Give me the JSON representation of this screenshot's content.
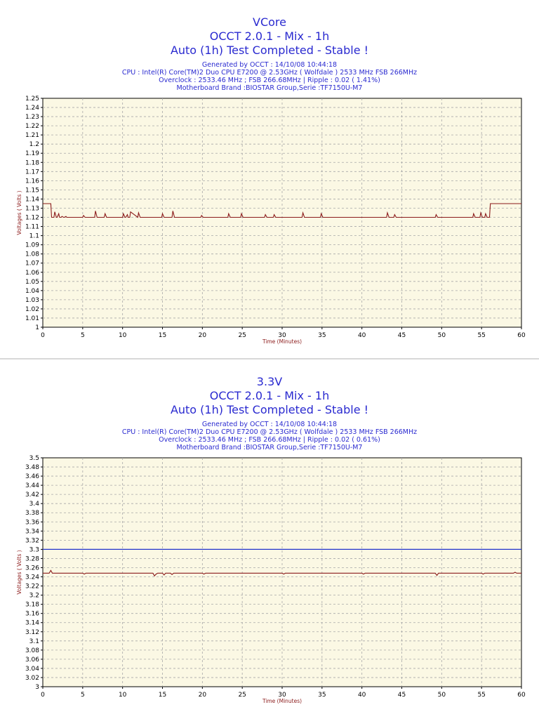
{
  "charts": [
    {
      "title": "VCore",
      "subtitle1": "OCCT 2.0.1 - Mix - 1h",
      "subtitle2": "Auto (1h) Test Completed - Stable !",
      "info": [
        "Generated by OCCT : 14/10/08 10:44:18",
        "CPU : Intel(R) Core(TM)2 Duo CPU E7200 @ 2.53GHz ( Wolfdale ) 2533 MHz FSB 266MHz",
        "Overclock : 2533.46 MHz ; FSB 266.68MHz | Ripple : 0.02 ( 1.41%)",
        "Motherboard Brand :BIOSTAR Group,Serie :TF7150U-M7"
      ]
    },
    {
      "title": "3.3V",
      "subtitle1": "OCCT 2.0.1 - Mix - 1h",
      "subtitle2": "Auto (1h) Test Completed - Stable !",
      "info": [
        "Generated by OCCT : 14/10/08 10:44:18",
        "CPU : Intel(R) Core(TM)2 Duo CPU E7200 @ 2.53GHz ( Wolfdale ) 2533 MHz FSB 266MHz",
        "Overclock : 2533.46 MHz ; FSB 266.68MHz | Ripple : 0.02 ( 0.61%)",
        "Motherboard Brand :BIOSTAR Group,Serie :TF7150U-M7"
      ]
    }
  ],
  "colors": {
    "title": "#2a2ad0",
    "plot_bg": "#fbf8e4",
    "grid": "#a8a8a8",
    "line": "#8b1a1a",
    "reference_line": "#2233cc",
    "axis_text": "#8b1a1a"
  },
  "chart_data": [
    {
      "type": "line",
      "title": "VCore",
      "xlabel": "Time (Minutes)",
      "ylabel": "Voltages ( Volts )",
      "xlim": [
        0,
        60
      ],
      "ylim": [
        1,
        1.25
      ],
      "xticks": [
        0,
        5,
        10,
        15,
        20,
        25,
        30,
        35,
        40,
        45,
        50,
        55,
        60
      ],
      "yticks": [
        1,
        1.01,
        1.02,
        1.03,
        1.04,
        1.05,
        1.06,
        1.07,
        1.08,
        1.09,
        1.1,
        1.11,
        1.12,
        1.13,
        1.14,
        1.15,
        1.16,
        1.17,
        1.18,
        1.19,
        1.2,
        1.21,
        1.22,
        1.23,
        1.24,
        1.25
      ],
      "tick_labels_y": [
        "1",
        "1.01",
        "1.02",
        "1.03",
        "1.04",
        "1.05",
        "1.06",
        "1.07",
        "1.08",
        "1.09",
        "1.1",
        "1.11",
        "1.12",
        "1.13",
        "1.14",
        "1.15",
        "1.16",
        "1.17",
        "1.18",
        "1.19",
        "1.2",
        "1.21",
        "1.22",
        "1.23",
        "1.24",
        "1.25"
      ],
      "tick_labels_x": [
        "0",
        "5",
        "10",
        "15",
        "20",
        "25",
        "30",
        "35",
        "40",
        "45",
        "50",
        "55",
        "60"
      ],
      "grid": true,
      "series": [
        {
          "x": [
            0,
            1.0,
            1.1,
            1.4,
            1.5,
            1.7,
            1.8,
            2.0,
            2.1,
            2.3,
            2.4,
            2.6,
            2.7,
            2.9,
            3.0,
            5.0,
            5.1,
            5.3,
            5.4,
            6.5,
            6.6,
            6.8,
            6.9,
            7.7,
            7.8,
            8.0,
            10.0,
            10.1,
            10.3,
            10.4,
            10.6,
            10.7,
            10.9,
            11.0,
            11.9,
            12.0,
            12.2,
            14.9,
            15.0,
            15.2,
            15.3,
            16.2,
            16.3,
            16.5,
            16.6,
            19.8,
            19.9,
            20.1,
            23.2,
            23.3,
            23.5,
            23.6,
            24.8,
            24.9,
            25.1,
            27.8,
            27.9,
            28.1,
            28.2,
            28.9,
            29.0,
            29.2,
            32.5,
            32.6,
            32.8,
            34.8,
            34.9,
            35.1,
            43.1,
            43.2,
            43.4,
            44.0,
            44.1,
            44.3,
            49.2,
            49.3,
            49.5,
            53.9,
            54.0,
            54.2,
            54.8,
            54.9,
            55.1,
            55.4,
            55.5,
            55.7,
            56.0,
            56.1,
            60
          ],
          "y": [
            1.135,
            1.135,
            1.12,
            1.12,
            1.126,
            1.12,
            1.12,
            1.124,
            1.12,
            1.12,
            1.121,
            1.12,
            1.12,
            1.121,
            1.12,
            1.12,
            1.122,
            1.12,
            1.12,
            1.12,
            1.127,
            1.12,
            1.12,
            1.12,
            1.124,
            1.12,
            1.12,
            1.124,
            1.12,
            1.12,
            1.123,
            1.12,
            1.12,
            1.126,
            1.12,
            1.125,
            1.12,
            1.12,
            1.124,
            1.12,
            1.12,
            1.12,
            1.127,
            1.12,
            1.12,
            1.12,
            1.122,
            1.12,
            1.12,
            1.124,
            1.12,
            1.12,
            1.12,
            1.124,
            1.12,
            1.12,
            1.123,
            1.12,
            1.12,
            1.12,
            1.123,
            1.12,
            1.12,
            1.125,
            1.12,
            1.12,
            1.124,
            1.12,
            1.12,
            1.125,
            1.12,
            1.12,
            1.123,
            1.12,
            1.12,
            1.123,
            1.12,
            1.12,
            1.124,
            1.12,
            1.12,
            1.125,
            1.12,
            1.12,
            1.124,
            1.12,
            1.12,
            1.135,
            1.135
          ]
        }
      ]
    },
    {
      "type": "line",
      "title": "3.3V",
      "xlabel": "Time (Minutes)",
      "ylabel": "Voltages ( Volts )",
      "xlim": [
        0,
        60
      ],
      "ylim": [
        3,
        3.5
      ],
      "xticks": [
        0,
        5,
        10,
        15,
        20,
        25,
        30,
        35,
        40,
        45,
        50,
        55,
        60
      ],
      "yticks": [
        3,
        3.02,
        3.04,
        3.06,
        3.08,
        3.1,
        3.12,
        3.14,
        3.16,
        3.18,
        3.2,
        3.22,
        3.24,
        3.26,
        3.28,
        3.3,
        3.32,
        3.34,
        3.36,
        3.38,
        3.4,
        3.42,
        3.44,
        3.46,
        3.48,
        3.5
      ],
      "tick_labels_y": [
        "3",
        "3.02",
        "3.04",
        "3.06",
        "3.08",
        "3.1",
        "3.12",
        "3.14",
        "3.16",
        "3.18",
        "3.2",
        "3.22",
        "3.24",
        "3.26",
        "3.28",
        "3.3",
        "3.32",
        "3.34",
        "3.36",
        "3.38",
        "3.4",
        "3.42",
        "3.44",
        "3.46",
        "3.48",
        "3.5"
      ],
      "tick_labels_x": [
        "0",
        "5",
        "10",
        "15",
        "20",
        "25",
        "30",
        "35",
        "40",
        "45",
        "50",
        "55",
        "60"
      ],
      "grid": true,
      "reference_line": 3.3,
      "series": [
        {
          "x": [
            0,
            0.8,
            1.0,
            1.2,
            1.4,
            5.0,
            5.2,
            5.4,
            13.8,
            14.0,
            14.2,
            14.4,
            15.0,
            15.2,
            15.4,
            16.0,
            16.2,
            16.4,
            20.0,
            20.2,
            20.4,
            30.0,
            30.2,
            30.4,
            40.0,
            40.2,
            40.4,
            49.2,
            49.4,
            49.6,
            55.0,
            55.2,
            55.4,
            59.0,
            59.2,
            59.4,
            60
          ],
          "y": [
            3.248,
            3.248,
            3.254,
            3.248,
            3.248,
            3.248,
            3.246,
            3.248,
            3.248,
            3.242,
            3.246,
            3.248,
            3.248,
            3.244,
            3.248,
            3.248,
            3.245,
            3.248,
            3.248,
            3.246,
            3.248,
            3.248,
            3.246,
            3.248,
            3.248,
            3.246,
            3.248,
            3.248,
            3.243,
            3.248,
            3.248,
            3.246,
            3.248,
            3.248,
            3.25,
            3.248,
            3.248
          ]
        }
      ]
    }
  ]
}
